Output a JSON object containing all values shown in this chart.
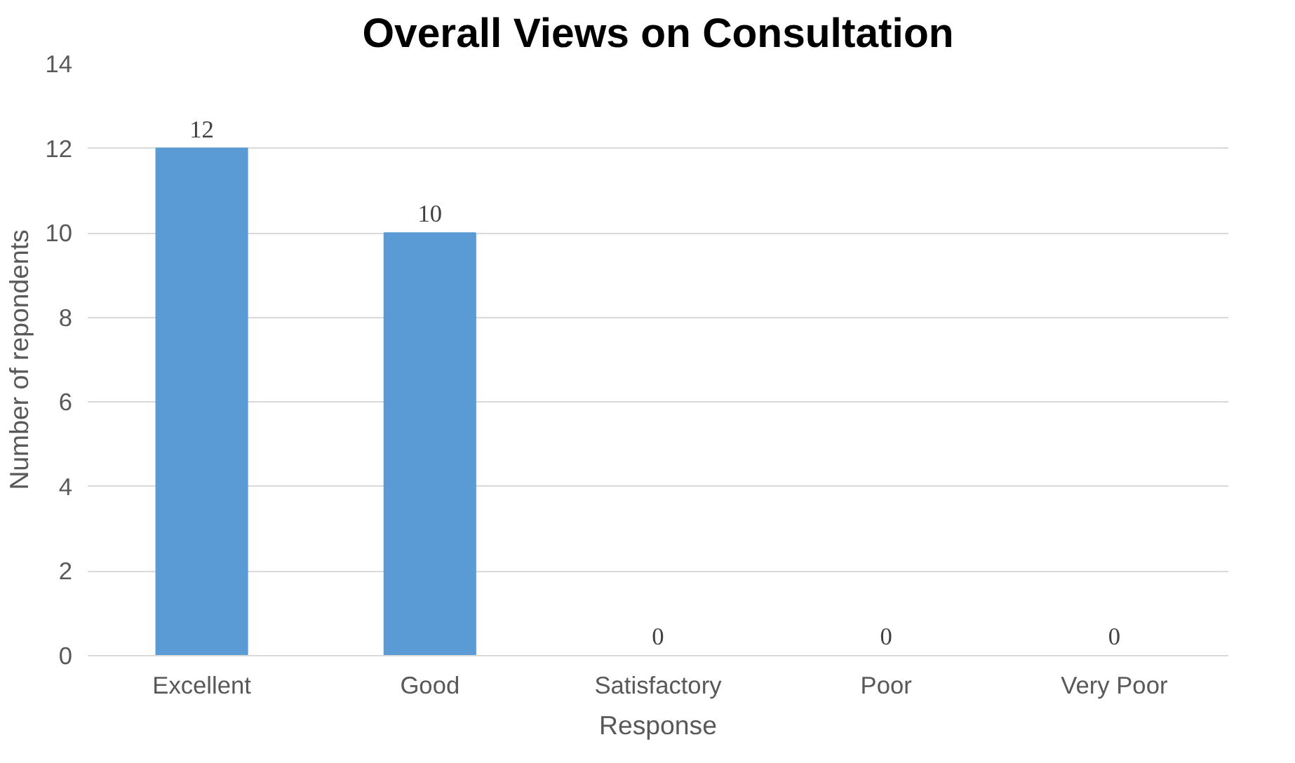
{
  "chart_data": {
    "type": "bar",
    "title": "Overall Views on Consultation",
    "xlabel": "Response",
    "ylabel": "Number of repondents",
    "categories": [
      "Excellent",
      "Good",
      "Satisfactory",
      "Poor",
      "Very Poor"
    ],
    "values": [
      12,
      10,
      0,
      0,
      0
    ],
    "color": "#5b9bd5",
    "ylim": [
      0,
      14
    ],
    "yticks": [
      0,
      2,
      4,
      6,
      8,
      10,
      12,
      14
    ],
    "grid": "y",
    "data_labels": true
  }
}
